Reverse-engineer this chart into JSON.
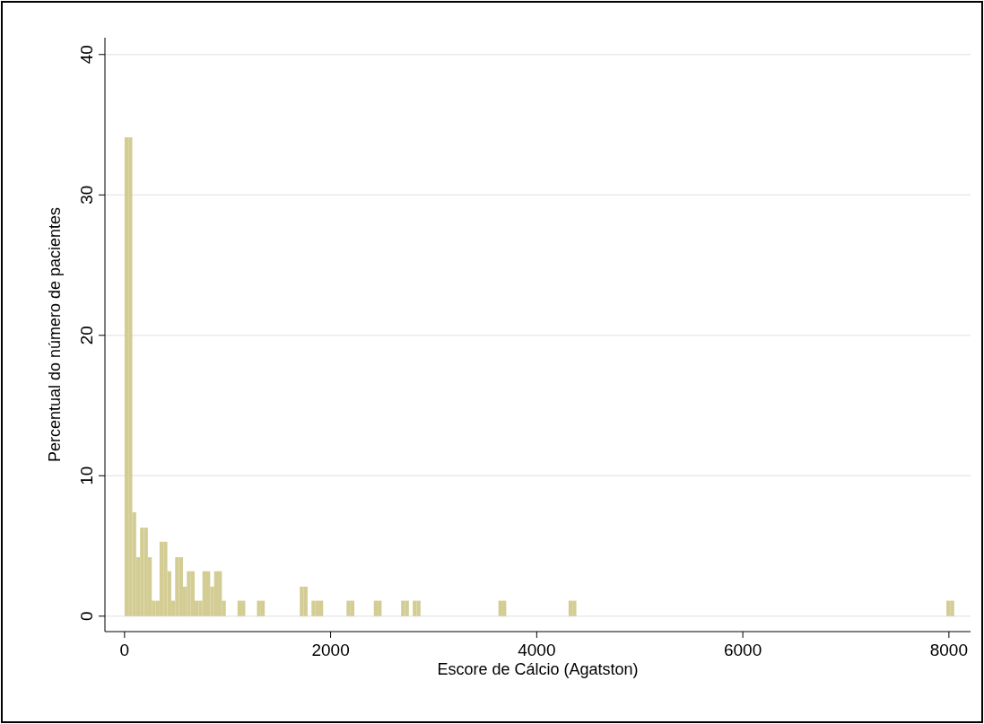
{
  "chart_data": {
    "type": "histogram",
    "xlabel": "Escore de Cálcio (Agatston)",
    "ylabel": "Percentual do número de pacientes",
    "color": "#d3cd94",
    "bins": [
      0,
      37.8,
      75.6,
      113.4,
      151.2,
      189,
      226.8,
      264.6,
      302.4,
      340.2,
      378,
      415.8,
      453.6,
      491.4,
      529.2,
      567,
      604.8,
      642.6,
      680.4,
      718.2,
      756,
      793.8,
      831.6,
      869.4,
      907.2,
      945,
      982.8,
      1020.6,
      1058.4,
      1096.2,
      1134,
      1171.8,
      1209.6,
      1247.4,
      1285.2,
      1323,
      1360.8,
      1398.6,
      1436.4,
      1474.2,
      1512,
      1549.8,
      1587.6,
      1625.4,
      1663.2,
      1701,
      1738.8,
      1776.6,
      1814.4,
      1852.2,
      1890,
      1927.8,
      1965.6,
      2003.4,
      2041.2,
      2079,
      2116.8,
      2154.6,
      2192.4,
      2230.2,
      2268,
      2305.8,
      2343.6,
      2381.4,
      2419.2,
      2457,
      2494.8,
      2532.6,
      2570.4,
      2608.2,
      2646,
      2683.8,
      2721.6,
      2759.4,
      2797.2,
      2835,
      2872.8,
      2910.6,
      2948.4,
      2986.2,
      3024,
      3061.8,
      3099.6,
      3137.4,
      3175.2,
      3213,
      3250.8,
      3288.6,
      3326.4,
      3364.2,
      3402,
      3439.8,
      3477.6,
      3515.4,
      3553.2,
      3591,
      3628.8,
      3666.6,
      3704.4,
      3742.2,
      3780,
      3817.8,
      3855.6,
      3893.4,
      3931.2,
      3969,
      4006.8,
      4044.6,
      4082.4,
      4120.2,
      4158,
      4195.8,
      4233.6,
      4271.4,
      4309.2,
      4347,
      4384.8,
      4422.6,
      4460.4,
      4498.2,
      4536,
      4573.8,
      4611.6,
      4649.4,
      4687.2,
      4725,
      4762.8,
      4800.6,
      4838.4,
      4876.2,
      4914,
      4951.8,
      4989.6,
      5027.4,
      5065.2,
      5103,
      5140.8,
      5178.6,
      5216.4,
      5254.2,
      5292,
      5329.8,
      5367.6,
      5405.4,
      5443.2,
      5481,
      5518.8,
      5556.6,
      5594.4,
      5632.2,
      5670,
      5707.8,
      5745.6,
      5783.4,
      5821.2,
      5859,
      5896.8,
      5934.6,
      5972.4,
      6010.2,
      6048,
      6085.8,
      6123.6,
      6161.4,
      6199.2,
      6237,
      6274.8,
      6312.6,
      6350.4,
      6388.2,
      6426,
      6463.8,
      6501.6,
      6539.4,
      6577.2,
      6615,
      6652.8,
      6690.6,
      6728.4,
      6766.2,
      6804,
      6841.8,
      6879.6,
      6917.4,
      6955.2,
      6993,
      7030.8,
      7068.6,
      7106.4,
      7144.2,
      7182,
      7219.8,
      7257.6,
      7295.4,
      7333.2,
      7371,
      7408.8,
      7446.6,
      7484.4,
      7522.2,
      7560,
      7597.8,
      7635.6,
      7673.4,
      7711.2,
      7749,
      7786.8,
      7824.6,
      7862.4,
      7900.2,
      7938,
      7975.8,
      8013.6,
      8051.4
    ],
    "values": [
      34.1,
      34.1,
      7.4,
      4.2,
      6.3,
      6.3,
      4.2,
      1.1,
      1.1,
      5.3,
      5.3,
      3.2,
      1.1,
      4.2,
      4.2,
      2.1,
      3.2,
      3.2,
      1.1,
      1.1,
      3.2,
      3.2,
      2.1,
      3.2,
      3.2,
      1.1,
      0,
      0,
      0,
      1.1,
      1.1,
      0,
      0,
      0,
      1.1,
      1.1,
      0,
      0,
      0,
      0,
      0,
      0,
      0,
      0,
      0,
      2.1,
      2.1,
      0,
      1.1,
      1.1,
      1.1,
      0,
      0,
      0,
      0,
      0,
      0,
      1.1,
      1.1,
      0,
      0,
      0,
      0,
      0,
      1.1,
      1.1,
      0,
      0,
      0,
      0,
      0,
      1.1,
      1.1,
      0,
      1.1,
      1.1,
      0,
      0,
      0,
      0,
      0,
      0,
      0,
      0,
      0,
      0,
      0,
      0,
      0,
      0,
      0,
      0,
      0,
      0,
      0,
      0,
      1.1,
      1.1,
      0,
      0,
      0,
      0,
      0,
      0,
      0,
      0,
      0,
      0,
      0,
      0,
      0,
      0,
      0,
      0,
      1.1,
      1.1,
      0,
      0,
      0,
      0,
      0,
      0,
      0,
      0,
      0,
      0,
      0,
      0,
      0,
      0,
      0,
      0,
      0,
      0,
      0,
      0,
      0,
      0,
      0,
      0,
      0,
      0,
      0,
      0,
      0,
      0,
      0,
      0,
      0,
      0,
      0,
      0,
      0,
      0,
      0,
      0,
      0,
      0,
      0,
      0,
      0,
      0,
      0,
      0,
      0,
      0,
      0,
      0,
      0,
      0,
      0,
      0,
      0,
      0,
      0,
      0,
      0,
      0,
      0,
      0,
      0,
      0,
      0,
      0,
      0,
      0,
      0,
      0,
      0,
      0,
      0,
      0,
      0,
      0,
      0,
      0,
      0,
      0,
      0,
      0,
      0,
      0,
      0,
      0,
      0,
      0,
      0,
      0,
      0,
      0,
      0,
      1.1,
      1.1
    ],
    "xlim": [
      -190,
      8210
    ],
    "ylim": [
      -1.1,
      41.2
    ],
    "xticks": [
      0,
      2000,
      4000,
      6000,
      8000
    ],
    "yticks": [
      0,
      10,
      20,
      30,
      40
    ],
    "grid": "y"
  }
}
